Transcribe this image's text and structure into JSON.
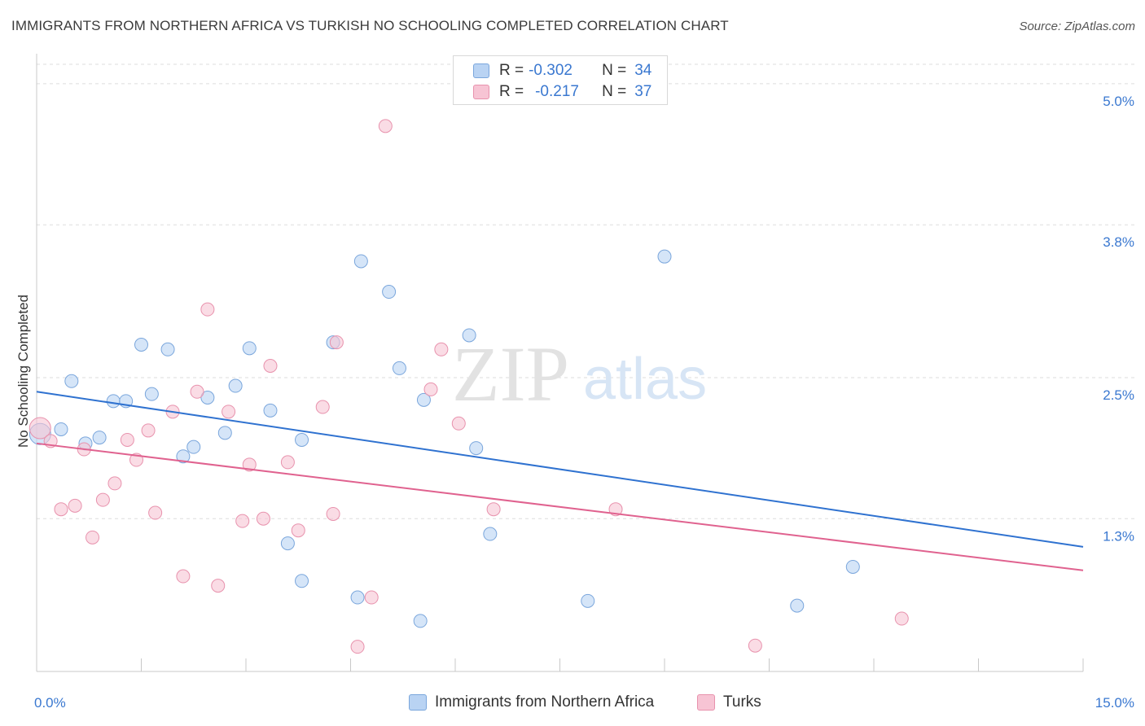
{
  "header": {
    "title": "IMMIGRANTS FROM NORTHERN AFRICA VS TURKISH NO SCHOOLING COMPLETED CORRELATION CHART",
    "source": "Source: ZipAtlas.com"
  },
  "watermark": {
    "part1": "ZIP",
    "part2": "atlas"
  },
  "legend_top": {
    "rows": [
      {
        "r_label": "R =",
        "r_value": "-0.302",
        "n_label": "N =",
        "n_value": "34"
      },
      {
        "r_label": "R =",
        "r_value": "-0.217",
        "n_label": "N =",
        "n_value": "37"
      }
    ]
  },
  "colors": {
    "blue_fill": "#b9d3f3",
    "blue_stroke": "#7aa6dc",
    "blue_line": "#2f72d0",
    "pink_fill": "#f7c4d4",
    "pink_stroke": "#e892ad",
    "pink_line": "#e0628f",
    "tick_label": "#3a78d0",
    "grid": "#dddddd"
  },
  "chart_data": {
    "type": "scatter",
    "title": "IMMIGRANTS FROM NORTHERN AFRICA VS TURKISH NO SCHOOLING COMPLETED CORRELATION CHART",
    "xlabel": "",
    "ylabel": "No Schooling Completed",
    "xlim": [
      0,
      15
    ],
    "ylim": [
      0,
      5.2
    ],
    "x_tick_labels": [
      {
        "value": 0,
        "label": "0.0%"
      },
      {
        "value": 15,
        "label": "15.0%"
      }
    ],
    "y_ticks": [
      {
        "value": 1.3,
        "label": "1.3%"
      },
      {
        "value": 2.5,
        "label": "2.5%"
      },
      {
        "value": 3.8,
        "label": "3.8%"
      },
      {
        "value": 5.0,
        "label": "5.0%"
      }
    ],
    "grid": true,
    "legend_position": "bottom",
    "series": [
      {
        "name": "Immigrants from Northern Africa",
        "color": "blue",
        "trend": {
          "x0": 0,
          "y0": 2.38,
          "x1": 15,
          "y1": 1.06
        },
        "points": [
          {
            "x": 0.05,
            "y": 2.02,
            "big": true
          },
          {
            "x": 0.35,
            "y": 2.06
          },
          {
            "x": 0.5,
            "y": 2.47
          },
          {
            "x": 0.7,
            "y": 1.94
          },
          {
            "x": 0.9,
            "y": 1.99
          },
          {
            "x": 1.1,
            "y": 2.3
          },
          {
            "x": 1.28,
            "y": 2.3
          },
          {
            "x": 1.5,
            "y": 2.78
          },
          {
            "x": 1.65,
            "y": 2.36
          },
          {
            "x": 1.88,
            "y": 2.74
          },
          {
            "x": 2.1,
            "y": 1.83
          },
          {
            "x": 2.25,
            "y": 1.91
          },
          {
            "x": 2.45,
            "y": 2.33
          },
          {
            "x": 2.7,
            "y": 2.03
          },
          {
            "x": 2.85,
            "y": 2.43
          },
          {
            "x": 3.05,
            "y": 2.75
          },
          {
            "x": 3.35,
            "y": 2.22
          },
          {
            "x": 3.6,
            "y": 1.09
          },
          {
            "x": 3.8,
            "y": 1.97
          },
          {
            "x": 3.8,
            "y": 0.77
          },
          {
            "x": 4.25,
            "y": 2.8
          },
          {
            "x": 4.6,
            "y": 0.63
          },
          {
            "x": 4.65,
            "y": 3.49
          },
          {
            "x": 5.05,
            "y": 3.23
          },
          {
            "x": 5.2,
            "y": 2.58
          },
          {
            "x": 5.5,
            "y": 0.43
          },
          {
            "x": 5.55,
            "y": 2.31
          },
          {
            "x": 6.2,
            "y": 2.86
          },
          {
            "x": 6.3,
            "y": 1.9
          },
          {
            "x": 6.5,
            "y": 1.17
          },
          {
            "x": 7.9,
            "y": 0.6
          },
          {
            "x": 9.0,
            "y": 3.53
          },
          {
            "x": 10.9,
            "y": 0.56
          },
          {
            "x": 11.7,
            "y": 0.89
          }
        ]
      },
      {
        "name": "Turks",
        "color": "pink",
        "trend": {
          "x0": 0,
          "y0": 1.94,
          "x1": 15,
          "y1": 0.86
        },
        "points": [
          {
            "x": 0.05,
            "y": 2.07,
            "big": true
          },
          {
            "x": 0.2,
            "y": 1.96
          },
          {
            "x": 0.35,
            "y": 1.38
          },
          {
            "x": 0.55,
            "y": 1.41
          },
          {
            "x": 0.68,
            "y": 1.89
          },
          {
            "x": 0.8,
            "y": 1.14
          },
          {
            "x": 0.95,
            "y": 1.46
          },
          {
            "x": 1.12,
            "y": 1.6
          },
          {
            "x": 1.3,
            "y": 1.97
          },
          {
            "x": 1.43,
            "y": 1.8
          },
          {
            "x": 1.6,
            "y": 2.05
          },
          {
            "x": 1.7,
            "y": 1.35
          },
          {
            "x": 1.95,
            "y": 2.21
          },
          {
            "x": 2.1,
            "y": 0.81
          },
          {
            "x": 2.3,
            "y": 2.38
          },
          {
            "x": 2.45,
            "y": 3.08
          },
          {
            "x": 2.6,
            "y": 0.73
          },
          {
            "x": 2.75,
            "y": 2.21
          },
          {
            "x": 2.95,
            "y": 1.28
          },
          {
            "x": 3.05,
            "y": 1.76
          },
          {
            "x": 3.25,
            "y": 1.3
          },
          {
            "x": 3.35,
            "y": 2.6
          },
          {
            "x": 3.6,
            "y": 1.78
          },
          {
            "x": 3.75,
            "y": 1.2
          },
          {
            "x": 4.1,
            "y": 2.25
          },
          {
            "x": 4.25,
            "y": 1.34
          },
          {
            "x": 4.3,
            "y": 2.8
          },
          {
            "x": 4.6,
            "y": 0.21
          },
          {
            "x": 4.8,
            "y": 0.63
          },
          {
            "x": 5.0,
            "y": 4.64
          },
          {
            "x": 5.65,
            "y": 2.4
          },
          {
            "x": 5.8,
            "y": 2.74
          },
          {
            "x": 6.05,
            "y": 2.11
          },
          {
            "x": 6.55,
            "y": 1.38
          },
          {
            "x": 8.3,
            "y": 1.38
          },
          {
            "x": 10.3,
            "y": 0.22
          },
          {
            "x": 12.4,
            "y": 0.45
          }
        ]
      }
    ]
  }
}
